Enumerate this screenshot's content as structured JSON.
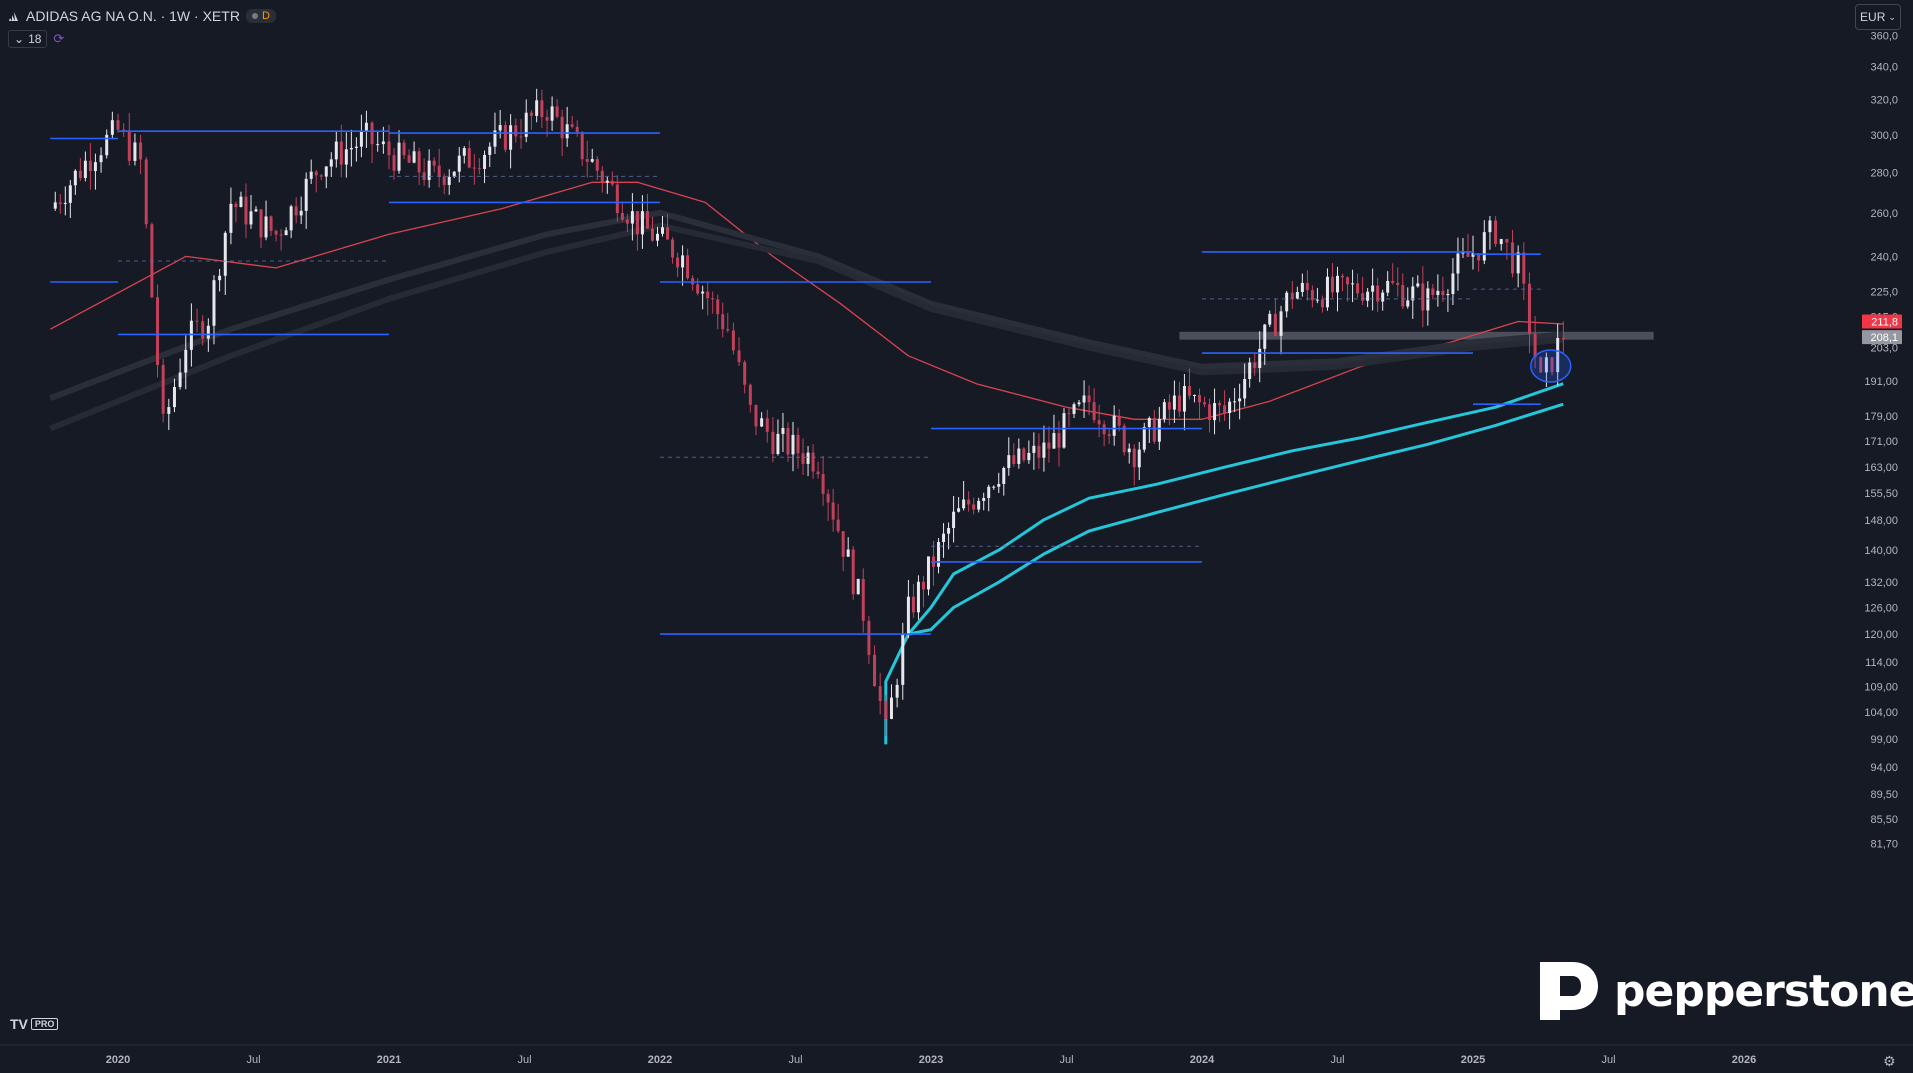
{
  "header": {
    "symbol_title": "ADIDAS AG NA O.N. · 1W · XETR",
    "badge_label": "D",
    "indicator_count": "18",
    "currency": "EUR"
  },
  "branding": {
    "tv_logo": "TV",
    "tv_pro": "PRO",
    "pepperstone": "pepperstone"
  },
  "colors": {
    "background": "#161a25",
    "up_candle": "#e6e8ee",
    "down_candle": "#c2415a",
    "level_line": "#2962ff",
    "ema_red": "#d9434f",
    "ema_cyan": "#26c6da",
    "last_price_tag": "#f23645"
  },
  "chart_data": {
    "type": "candlestick",
    "title": "ADIDAS AG NA O.N. · 1W · XETR",
    "y_scale": "log",
    "ylim": [
      80,
      365
    ],
    "y_ticks": [
      "360,0",
      "340,0",
      "320,0",
      "300,0",
      "280,0",
      "260,0",
      "240,0",
      "225,0",
      "215,0",
      "203,0",
      "191,00",
      "179,00",
      "171,00",
      "163,00",
      "155,50",
      "148,00",
      "140,00",
      "132,00",
      "126,00",
      "120,00",
      "114,00",
      "109,00",
      "104,00",
      "99,00",
      "94,00",
      "89,50",
      "85,50",
      "81,70"
    ],
    "x_ticks": [
      "2020",
      "Jul",
      "2021",
      "Jul",
      "2022",
      "Jul",
      "2023",
      "Jul",
      "2024",
      "Jul",
      "2025",
      "Jul",
      "2026"
    ],
    "x_tick_dates": [
      "2020-01",
      "2020-07",
      "2021-01",
      "2021-07",
      "2022-01",
      "2022-07",
      "2023-01",
      "2023-07",
      "2024-01",
      "2024-07",
      "2025-01",
      "2025-07",
      "2026-01"
    ],
    "price_tags": [
      {
        "label": "211,8",
        "value": 211.8,
        "color": "#f23645"
      },
      {
        "label": "208,1",
        "value": 208.1,
        "color": "#9598a1"
      }
    ],
    "price_path": [
      [
        "2019-10",
        262
      ],
      [
        "2019-12",
        292
      ],
      [
        "2020-01",
        302
      ],
      [
        "2020-02",
        285
      ],
      [
        "2020-03",
        175
      ],
      [
        "2020-04",
        205
      ],
      [
        "2020-05",
        215
      ],
      [
        "2020-06",
        265
      ],
      [
        "2020-08",
        250
      ],
      [
        "2020-10",
        285
      ],
      [
        "2020-12",
        298
      ],
      [
        "2021-01",
        290
      ],
      [
        "2021-03",
        278
      ],
      [
        "2021-05",
        290
      ],
      [
        "2021-08",
        315
      ],
      [
        "2021-10",
        285
      ],
      [
        "2021-12",
        255
      ],
      [
        "2022-02",
        240
      ],
      [
        "2022-04",
        210
      ],
      [
        "2022-05",
        180
      ],
      [
        "2022-06",
        172
      ],
      [
        "2022-08",
        165
      ],
      [
        "2022-10",
        125
      ],
      [
        "2022-11",
        100
      ],
      [
        "2022-12",
        125
      ],
      [
        "2023-02",
        148
      ],
      [
        "2023-04",
        162
      ],
      [
        "2023-06",
        168
      ],
      [
        "2023-08",
        184
      ],
      [
        "2023-10",
        168
      ],
      [
        "2023-12",
        185
      ],
      [
        "2024-02",
        180
      ],
      [
        "2024-04",
        210
      ],
      [
        "2024-05",
        225
      ],
      [
        "2024-07",
        225
      ],
      [
        "2024-09",
        228
      ],
      [
        "2024-11",
        222
      ],
      [
        "2025-01",
        242
      ],
      [
        "2025-02",
        252
      ],
      [
        "2025-03",
        235
      ],
      [
        "2025-04",
        190
      ],
      [
        "2025-05",
        208
      ]
    ],
    "horizontal_levels": [
      {
        "from": "2019-10",
        "to": "2020-01",
        "price": 298
      },
      {
        "from": "2020-01",
        "to": "2021-01",
        "price": 302
      },
      {
        "from": "2021-01",
        "to": "2022-01",
        "price": 301
      },
      {
        "from": "2021-01",
        "to": "2022-01",
        "price": 265
      },
      {
        "from": "2019-10",
        "to": "2020-01",
        "price": 229
      },
      {
        "from": "2020-01",
        "to": "2021-01",
        "price": 208
      },
      {
        "from": "2022-01",
        "to": "2023-01",
        "price": 229
      },
      {
        "from": "2023-01",
        "to": "2024-01",
        "price": 175
      },
      {
        "from": "2022-01",
        "to": "2023-01",
        "price": 120
      },
      {
        "from": "2023-01",
        "to": "2024-01",
        "price": 137
      },
      {
        "from": "2024-01",
        "to": "2025-01",
        "price": 242
      },
      {
        "from": "2025-01",
        "to": "2025-04",
        "price": 241
      },
      {
        "from": "2024-01",
        "to": "2025-01",
        "price": 201
      },
      {
        "from": "2025-01",
        "to": "2025-04",
        "price": 183
      }
    ],
    "dashed_levels": [
      {
        "from": "2020-01",
        "to": "2021-01",
        "price": 238
      },
      {
        "from": "2022-01",
        "to": "2023-01",
        "price": 166
      },
      {
        "from": "2023-01",
        "to": "2024-01",
        "price": 141
      },
      {
        "from": "2024-01",
        "to": "2025-01",
        "price": 222
      },
      {
        "from": "2025-01",
        "to": "2025-04",
        "price": 226
      },
      {
        "from": "2021-01",
        "to": "2022-01",
        "price": 278
      }
    ],
    "resistance_zone": {
      "from": "2023-12",
      "to": "2025-09",
      "low": 206,
      "high": 209
    },
    "highlight_circle": {
      "date": "2025-04",
      "price": 192
    },
    "series": [
      {
        "name": "",
        "color": "#d9434f",
        "points": [
          [
            "2019-10",
            210
          ],
          [
            "2020-04",
            240
          ],
          [
            "2020-08",
            235
          ],
          [
            "2021-01",
            250
          ],
          [
            "2021-06",
            262
          ],
          [
            "2021-10",
            275
          ],
          [
            "2021-12",
            275
          ],
          [
            "2022-03",
            265
          ],
          [
            "2022-06",
            240
          ],
          [
            "2022-09",
            220
          ],
          [
            "2022-12",
            200
          ],
          [
            "2023-03",
            190
          ],
          [
            "2023-07",
            182
          ],
          [
            "2023-10",
            178
          ],
          [
            "2024-01",
            178
          ],
          [
            "2024-04",
            184
          ],
          [
            "2024-08",
            196
          ],
          [
            "2024-12",
            205
          ],
          [
            "2025-03",
            213
          ],
          [
            "2025-05",
            212
          ]
        ]
      },
      {
        "name": "",
        "color": "#26c6da",
        "points": [
          [
            "2022-11",
            98
          ],
          [
            "2022-11",
            110
          ],
          [
            "2022-12",
            120
          ],
          [
            "2023-01",
            126
          ],
          [
            "2023-02",
            134
          ],
          [
            "2023-04",
            140
          ],
          [
            "2023-06",
            148
          ],
          [
            "2023-08",
            154
          ],
          [
            "2023-11",
            158
          ],
          [
            "2024-02",
            163
          ],
          [
            "2024-05",
            168
          ],
          [
            "2024-08",
            172
          ],
          [
            "2024-11",
            177
          ],
          [
            "2025-02",
            182
          ],
          [
            "2025-05",
            190
          ]
        ]
      },
      {
        "name": "",
        "color": "#26c6da",
        "points": [
          [
            "2022-12",
            120
          ],
          [
            "2023-01",
            121
          ],
          [
            "2023-02",
            126
          ],
          [
            "2023-04",
            132
          ],
          [
            "2023-06",
            139
          ],
          [
            "2023-08",
            145
          ],
          [
            "2023-11",
            150
          ],
          [
            "2024-02",
            155
          ],
          [
            "2024-05",
            160
          ],
          [
            "2024-08",
            165
          ],
          [
            "2024-11",
            170
          ],
          [
            "2025-02",
            176
          ],
          [
            "2025-05",
            183
          ]
        ]
      },
      {
        "name": "",
        "color": "#2a2e39",
        "points": [
          [
            "2019-10",
            185
          ],
          [
            "2020-06",
            210
          ],
          [
            "2021-01",
            230
          ],
          [
            "2021-08",
            250
          ],
          [
            "2022-01",
            260
          ],
          [
            "2022-08",
            240
          ],
          [
            "2023-01",
            220
          ],
          [
            "2023-08",
            205
          ],
          [
            "2024-01",
            196
          ],
          [
            "2024-07",
            198
          ],
          [
            "2025-01",
            205
          ],
          [
            "2025-05",
            208
          ]
        ]
      },
      {
        "name": "",
        "color": "#262a35",
        "points": [
          [
            "2019-10",
            175
          ],
          [
            "2020-06",
            200
          ],
          [
            "2021-01",
            222
          ],
          [
            "2021-08",
            242
          ],
          [
            "2022-01",
            254
          ],
          [
            "2022-08",
            238
          ],
          [
            "2023-01",
            218
          ],
          [
            "2023-08",
            203
          ],
          [
            "2024-01",
            194
          ],
          [
            "2024-07",
            196
          ],
          [
            "2025-01",
            203
          ],
          [
            "2025-05",
            206
          ]
        ]
      }
    ]
  }
}
